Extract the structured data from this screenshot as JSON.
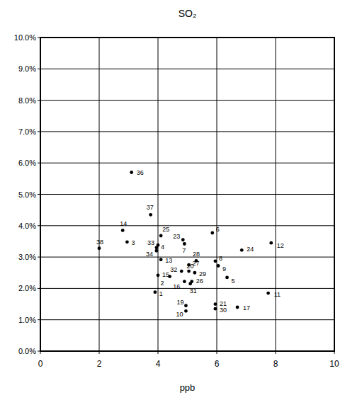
{
  "chart_data": {
    "type": "scatter",
    "title": "SO₂",
    "x_label": "ppb",
    "labels": [
      "1",
      "2",
      "3",
      "4",
      "5",
      "6",
      "7",
      "8",
      "9",
      "10",
      "11",
      "12",
      "13",
      "14",
      "15",
      "16",
      "17",
      "19",
      "20",
      "21",
      "23",
      "24",
      "25",
      "26",
      "27",
      "28",
      "29",
      "30",
      "31",
      "32",
      "33",
      "34",
      "36",
      "37",
      "38"
    ],
    "x": [
      3.9,
      4.4,
      2.95,
      3.95,
      6.35,
      5.85,
      4.9,
      5.95,
      6.05,
      4.95,
      7.75,
      7.85,
      4.1,
      2.8,
      4.0,
      4.9,
      6.7,
      4.95,
      5.05,
      5.95,
      4.85,
      6.85,
      4.1,
      5.15,
      5.05,
      5.3,
      5.25,
      5.95,
      5.1,
      4.8,
      4.0,
      3.95,
      3.1,
      3.75,
      2.0
    ],
    "values": [
      1.88,
      2.38,
      3.48,
      3.3,
      2.35,
      3.77,
      3.42,
      2.87,
      2.72,
      1.28,
      1.85,
      3.45,
      2.92,
      3.85,
      2.42,
      2.22,
      1.4,
      1.45,
      2.55,
      1.5,
      3.55,
      3.22,
      3.68,
      2.22,
      2.75,
      2.88,
      2.5,
      1.35,
      2.15,
      2.55,
      3.38,
      3.2,
      5.7,
      4.35,
      3.28
    ],
    "color": "#000000",
    "marker": "circle",
    "xlim": [
      0,
      10
    ],
    "xticks": [
      0,
      2,
      4,
      6,
      8,
      10
    ],
    "ylim": [
      0,
      10
    ],
    "yticks": [
      {
        "value": 0,
        "label": "0.0%"
      },
      {
        "value": 1,
        "label": "1.0%"
      },
      {
        "value": 2,
        "label": "2.0%"
      },
      {
        "value": 3,
        "label": "3.0%"
      },
      {
        "value": 4,
        "label": "4.0%"
      },
      {
        "value": 5,
        "label": "5.0%"
      },
      {
        "value": 6,
        "label": "6.0%"
      },
      {
        "value": 7,
        "label": "7.0%"
      },
      {
        "value": 8,
        "label": "8.0%"
      },
      {
        "value": 9,
        "label": "9.0%"
      },
      {
        "value": 10,
        "label": "10.0%"
      }
    ],
    "grid": true
  }
}
